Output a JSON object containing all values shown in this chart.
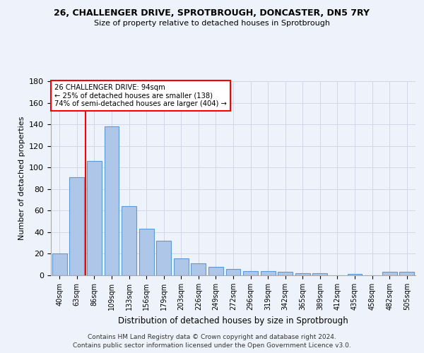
{
  "title_line1": "26, CHALLENGER DRIVE, SPROTBROUGH, DONCASTER, DN5 7RY",
  "title_line2": "Size of property relative to detached houses in Sprotbrough",
  "xlabel": "Distribution of detached houses by size in Sprotbrough",
  "ylabel": "Number of detached properties",
  "footer_line1": "Contains HM Land Registry data © Crown copyright and database right 2024.",
  "footer_line2": "Contains public sector information licensed under the Open Government Licence v3.0.",
  "bar_labels": [
    "40sqm",
    "63sqm",
    "86sqm",
    "109sqm",
    "133sqm",
    "156sqm",
    "179sqm",
    "203sqm",
    "226sqm",
    "249sqm",
    "272sqm",
    "296sqm",
    "319sqm",
    "342sqm",
    "365sqm",
    "389sqm",
    "412sqm",
    "435sqm",
    "458sqm",
    "482sqm",
    "505sqm"
  ],
  "bar_values": [
    20,
    91,
    106,
    138,
    64,
    43,
    32,
    16,
    11,
    8,
    6,
    4,
    4,
    3,
    2,
    2,
    0,
    1,
    0,
    3,
    3
  ],
  "bar_color": "#aec6e8",
  "bar_edge_color": "#5b9bd5",
  "grid_color": "#d0d8e8",
  "bg_color": "#eef2fa",
  "annotation_text_line1": "26 CHALLENGER DRIVE: 94sqm",
  "annotation_text_line2": "← 25% of detached houses are smaller (138)",
  "annotation_text_line3": "74% of semi-detached houses are larger (404) →",
  "vline_x": 1.5,
  "vline_color": "red",
  "annotation_box_color": "white",
  "annotation_box_edge_color": "red",
  "ylim": [
    0,
    180
  ],
  "yticks": [
    0,
    20,
    40,
    60,
    80,
    100,
    120,
    140,
    160,
    180
  ]
}
